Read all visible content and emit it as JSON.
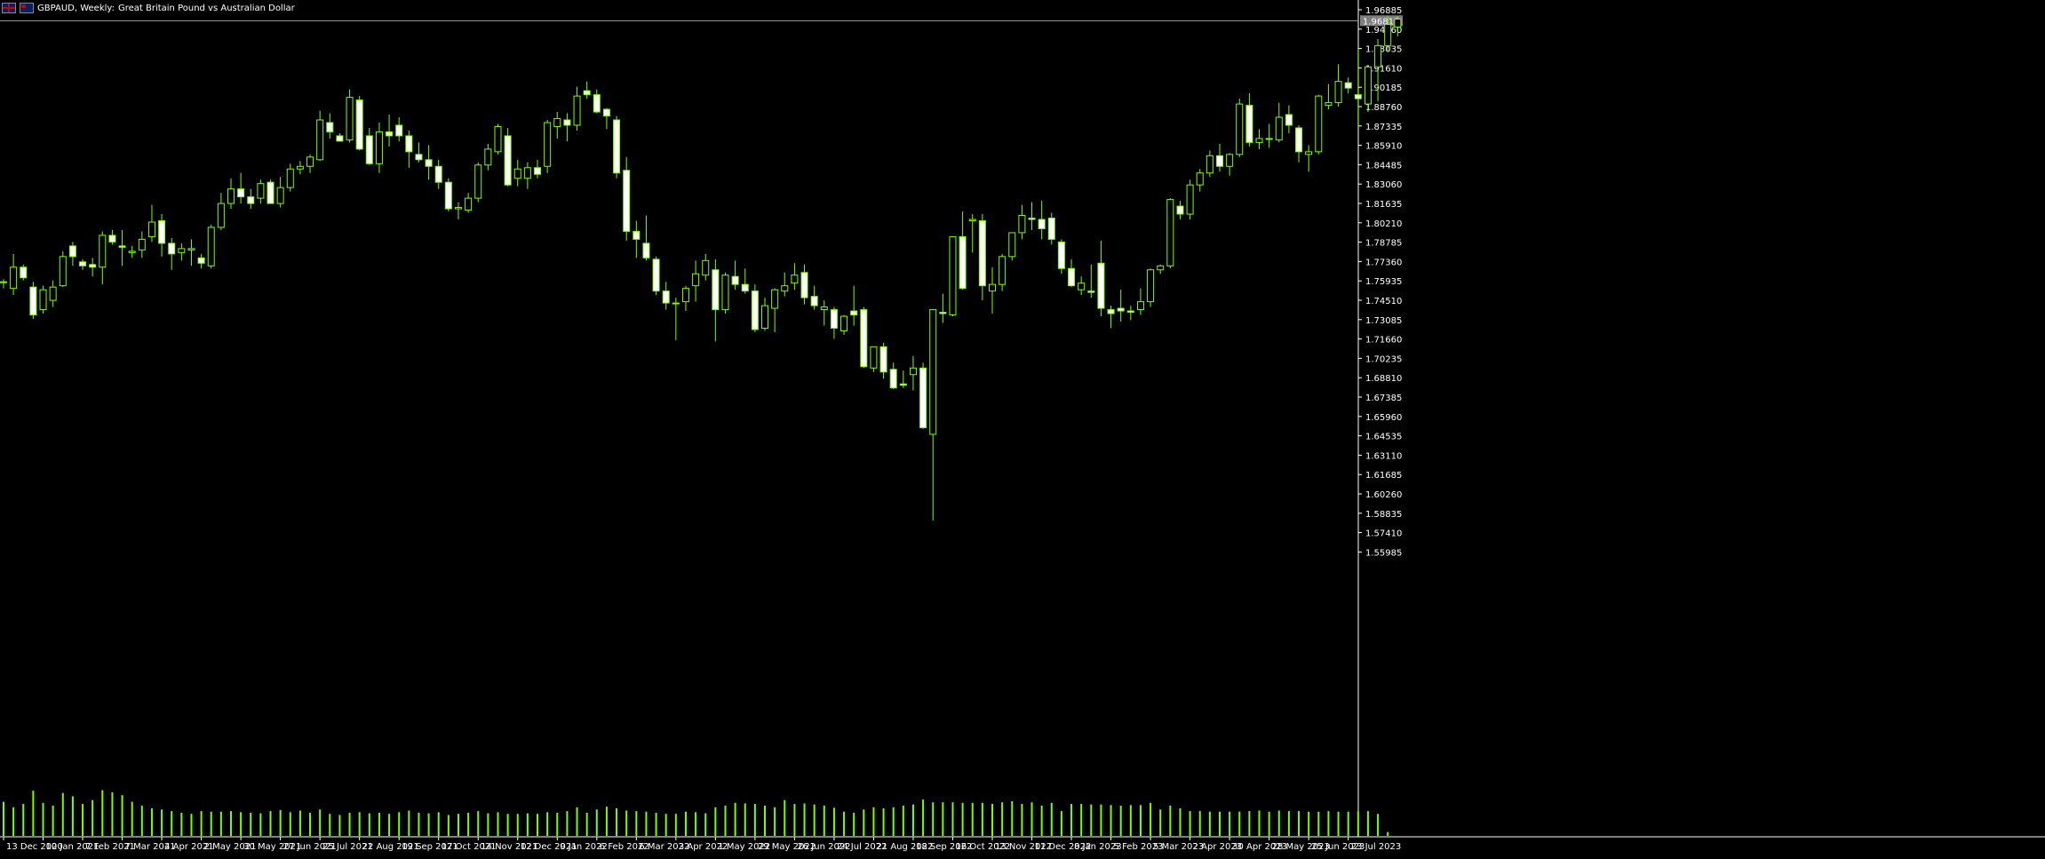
{
  "header": {
    "symbol": "GBPAUD, Weekly:",
    "description": "Great Britain Pound vs Australian Dollar"
  },
  "current_price_label": "1.96812",
  "colors": {
    "background": "#000000",
    "bull": "#7CFC00",
    "bear_fill": "#ffffff",
    "axis_text": "#ffffff",
    "price_line": "#a0a0a0",
    "volume": "#7CFC00"
  },
  "chart_data": {
    "type": "candlestick",
    "title": "GBPAUD, Weekly: Great Britain Pound vs Australian Dollar",
    "timeframe": "Weekly",
    "ylim": [
      1.5485,
      1.969
    ],
    "y_ticks": [
      "1.96885",
      "1.94460",
      "1.93035",
      "1.91610",
      "1.90185",
      "1.88760",
      "1.87335",
      "1.85910",
      "1.84485",
      "1.83060",
      "1.81635",
      "1.80210",
      "1.78785",
      "1.77360",
      "1.75935",
      "1.74510",
      "1.73085",
      "1.71660",
      "1.70235",
      "1.68810",
      "1.67385",
      "1.65960",
      "1.64535",
      "1.63110",
      "1.61685",
      "1.60260",
      "1.58835",
      "1.57410",
      "1.55985"
    ],
    "x_labels": [
      {
        "i": 0,
        "label": "13 Dec 2020"
      },
      {
        "i": 4,
        "label": "10 Jan 2021"
      },
      {
        "i": 8,
        "label": "7 Feb 2021"
      },
      {
        "i": 12,
        "label": "7 Mar 2021"
      },
      {
        "i": 16,
        "label": "4 Apr 2021"
      },
      {
        "i": 20,
        "label": "2 May 2021"
      },
      {
        "i": 24,
        "label": "30 May 2021"
      },
      {
        "i": 28,
        "label": "27 Jun 2021"
      },
      {
        "i": 32,
        "label": "25 Jul 2021"
      },
      {
        "i": 36,
        "label": "22 Aug 2021"
      },
      {
        "i": 40,
        "label": "19 Sep 2021"
      },
      {
        "i": 44,
        "label": "17 Oct 2021"
      },
      {
        "i": 48,
        "label": "14 Nov 2021"
      },
      {
        "i": 52,
        "label": "12 Dec 2021"
      },
      {
        "i": 56,
        "label": "9 Jan 2022"
      },
      {
        "i": 60,
        "label": "6 Feb 2022"
      },
      {
        "i": 64,
        "label": "6 Mar 2022"
      },
      {
        "i": 68,
        "label": "3 Apr 2022"
      },
      {
        "i": 72,
        "label": "1 May 2022"
      },
      {
        "i": 76,
        "label": "29 May 2022"
      },
      {
        "i": 80,
        "label": "26 Jun 2022"
      },
      {
        "i": 84,
        "label": "24 Jul 2022"
      },
      {
        "i": 88,
        "label": "21 Aug 2022"
      },
      {
        "i": 92,
        "label": "18 Sep 2022"
      },
      {
        "i": 96,
        "label": "16 Oct 2022"
      },
      {
        "i": 100,
        "label": "13 Nov 2022"
      },
      {
        "i": 104,
        "label": "11 Dec 2022"
      },
      {
        "i": 108,
        "label": "8 Jan 2023"
      },
      {
        "i": 112,
        "label": "5 Feb 2023"
      },
      {
        "i": 116,
        "label": "5 Mar 2023"
      },
      {
        "i": 120,
        "label": "2 Apr 2023"
      },
      {
        "i": 124,
        "label": "30 Apr 2023"
      },
      {
        "i": 128,
        "label": "28 May 2023"
      },
      {
        "i": 132,
        "label": "25 Jun 2023"
      },
      {
        "i": 136,
        "label": "23 Jul 2023"
      }
    ],
    "ohlc": [
      [
        1.77,
        1.772,
        1.765,
        1.77
      ],
      [
        1.765,
        1.791,
        1.76,
        1.781
      ],
      [
        1.781,
        1.783,
        1.771,
        1.773
      ],
      [
        1.766,
        1.77,
        1.742,
        1.745
      ],
      [
        1.749,
        1.767,
        1.746,
        1.764
      ],
      [
        1.756,
        1.771,
        1.751,
        1.766
      ],
      [
        1.767,
        1.793,
        1.766,
        1.789
      ],
      [
        1.797,
        1.8,
        1.782,
        1.789
      ],
      [
        1.785,
        1.787,
        1.779,
        1.782
      ],
      [
        1.783,
        1.788,
        1.774,
        1.781
      ],
      [
        1.781,
        1.808,
        1.768,
        1.805
      ],
      [
        1.805,
        1.809,
        1.798,
        1.8
      ],
      [
        1.797,
        1.809,
        1.782,
        1.796
      ],
      [
        1.792,
        1.797,
        1.788,
        1.793
      ],
      [
        1.794,
        1.808,
        1.788,
        1.802
      ],
      [
        1.804,
        1.828,
        1.8,
        1.815
      ],
      [
        1.816,
        1.821,
        1.789,
        1.799
      ],
      [
        1.799,
        1.803,
        1.779,
        1.791
      ],
      [
        1.792,
        1.799,
        1.786,
        1.795
      ],
      [
        1.794,
        1.802,
        1.782,
        1.795
      ],
      [
        1.788,
        1.791,
        1.78,
        1.784
      ],
      [
        1.782,
        1.813,
        1.78,
        1.811
      ],
      [
        1.811,
        1.837,
        1.809,
        1.829
      ],
      [
        1.829,
        1.848,
        1.825,
        1.84
      ],
      [
        1.84,
        1.852,
        1.829,
        1.834
      ],
      [
        1.834,
        1.84,
        1.825,
        1.829
      ],
      [
        1.833,
        1.847,
        1.829,
        1.844
      ],
      [
        1.845,
        1.847,
        1.829,
        1.829
      ],
      [
        1.829,
        1.849,
        1.826,
        1.841
      ],
      [
        1.841,
        1.859,
        1.838,
        1.855
      ],
      [
        1.855,
        1.861,
        1.851,
        1.857
      ],
      [
        1.857,
        1.866,
        1.852,
        1.864
      ],
      [
        1.862,
        1.899,
        1.861,
        1.892
      ],
      [
        1.89,
        1.897,
        1.878,
        1.883
      ],
      [
        1.88,
        1.882,
        1.876,
        1.876
      ],
      [
        1.877,
        1.915,
        1.875,
        1.909
      ],
      [
        1.907,
        1.91,
        1.869,
        1.87
      ],
      [
        1.88,
        1.886,
        1.858,
        1.859
      ],
      [
        1.859,
        1.89,
        1.852,
        1.883
      ],
      [
        1.883,
        1.896,
        1.872,
        1.88
      ],
      [
        1.888,
        1.894,
        1.876,
        1.88
      ],
      [
        1.88,
        1.884,
        1.856,
        1.868
      ],
      [
        1.866,
        1.875,
        1.86,
        1.862
      ],
      [
        1.862,
        1.873,
        1.847,
        1.857
      ],
      [
        1.857,
        1.862,
        1.84,
        1.845
      ],
      [
        1.845,
        1.848,
        1.823,
        1.825
      ],
      [
        1.825,
        1.83,
        1.817,
        1.826
      ],
      [
        1.824,
        1.837,
        1.822,
        1.833
      ],
      [
        1.833,
        1.86,
        1.83,
        1.858
      ],
      [
        1.858,
        1.874,
        1.854,
        1.87
      ],
      [
        1.868,
        1.889,
        1.866,
        1.887
      ],
      [
        1.88,
        1.886,
        1.842,
        1.843
      ],
      [
        1.848,
        1.862,
        1.842,
        1.855
      ],
      [
        1.848,
        1.86,
        1.84,
        1.856
      ],
      [
        1.856,
        1.862,
        1.848,
        1.851
      ],
      [
        1.857,
        1.892,
        1.852,
        1.89
      ],
      [
        1.887,
        1.898,
        1.878,
        1.893
      ],
      [
        1.892,
        1.897,
        1.876,
        1.888
      ],
      [
        1.888,
        1.917,
        1.884,
        1.91
      ],
      [
        1.914,
        1.921,
        1.908,
        1.911
      ],
      [
        1.911,
        1.915,
        1.897,
        1.898
      ],
      [
        1.9,
        1.901,
        1.885,
        1.895
      ],
      [
        1.892,
        1.895,
        1.848,
        1.852
      ],
      [
        1.854,
        1.864,
        1.801,
        1.808
      ],
      [
        1.808,
        1.816,
        1.788,
        1.802
      ],
      [
        1.799,
        1.82,
        1.786,
        1.788
      ],
      [
        1.787,
        1.789,
        1.76,
        1.763
      ],
      [
        1.763,
        1.77,
        1.749,
        1.754
      ],
      [
        1.754,
        1.758,
        1.726,
        1.754
      ],
      [
        1.755,
        1.767,
        1.748,
        1.765
      ],
      [
        1.767,
        1.786,
        1.755,
        1.776
      ],
      [
        1.775,
        1.791,
        1.771,
        1.786
      ],
      [
        1.779,
        1.787,
        1.725,
        1.749
      ],
      [
        1.749,
        1.777,
        1.746,
        1.775
      ],
      [
        1.774,
        1.786,
        1.764,
        1.768
      ],
      [
        1.768,
        1.78,
        1.761,
        1.763
      ],
      [
        1.763,
        1.768,
        1.732,
        1.734
      ],
      [
        1.735,
        1.758,
        1.733,
        1.752
      ],
      [
        1.75,
        1.765,
        1.732,
        1.764
      ],
      [
        1.763,
        1.777,
        1.759,
        1.767
      ],
      [
        1.769,
        1.784,
        1.764,
        1.775
      ],
      [
        1.777,
        1.783,
        1.753,
        1.758
      ],
      [
        1.759,
        1.767,
        1.749,
        1.752
      ],
      [
        1.749,
        1.756,
        1.737,
        1.751
      ],
      [
        1.749,
        1.751,
        1.727,
        1.735
      ],
      [
        1.733,
        1.745,
        1.73,
        1.744
      ],
      [
        1.748,
        1.767,
        1.737,
        1.745
      ],
      [
        1.749,
        1.751,
        1.705,
        1.706
      ],
      [
        1.705,
        1.721,
        1.702,
        1.721
      ],
      [
        1.721,
        1.724,
        1.697,
        1.702
      ],
      [
        1.704,
        1.709,
        1.689,
        1.69
      ],
      [
        1.693,
        1.703,
        1.69,
        1.692
      ],
      [
        1.7,
        1.714,
        1.688,
        1.705
      ],
      [
        1.705,
        1.709,
        1.659,
        1.66
      ],
      [
        1.655,
        1.748,
        1.59,
        1.749
      ],
      [
        1.747,
        1.761,
        1.739,
        1.746
      ],
      [
        1.745,
        1.804,
        1.744,
        1.804
      ],
      [
        1.804,
        1.823,
        1.764,
        1.765
      ],
      [
        1.816,
        1.821,
        1.792,
        1.817
      ],
      [
        1.816,
        1.821,
        1.756,
        1.767
      ],
      [
        1.763,
        1.781,
        1.746,
        1.768
      ],
      [
        1.768,
        1.791,
        1.763,
        1.789
      ],
      [
        1.789,
        1.807,
        1.786,
        1.807
      ],
      [
        1.807,
        1.828,
        1.802,
        1.82
      ],
      [
        1.818,
        1.83,
        1.809,
        1.817
      ],
      [
        1.817,
        1.831,
        1.802,
        1.81
      ],
      [
        1.818,
        1.822,
        1.798,
        1.802
      ],
      [
        1.8,
        1.802,
        1.776,
        1.78
      ],
      [
        1.78,
        1.787,
        1.766,
        1.767
      ],
      [
        1.764,
        1.774,
        1.76,
        1.769
      ],
      [
        1.763,
        1.783,
        1.758,
        1.762
      ],
      [
        1.784,
        1.801,
        1.744,
        1.75
      ],
      [
        1.749,
        1.752,
        1.735,
        1.746
      ],
      [
        1.75,
        1.764,
        1.74,
        1.748
      ],
      [
        1.748,
        1.752,
        1.741,
        1.747
      ],
      [
        1.749,
        1.765,
        1.745,
        1.755
      ],
      [
        1.755,
        1.78,
        1.751,
        1.779
      ],
      [
        1.779,
        1.783,
        1.776,
        1.782
      ],
      [
        1.782,
        1.833,
        1.78,
        1.832
      ],
      [
        1.827,
        1.831,
        1.817,
        1.821
      ],
      [
        1.821,
        1.847,
        1.817,
        1.843
      ],
      [
        1.843,
        1.855,
        1.838,
        1.852
      ],
      [
        1.852,
        1.869,
        1.849,
        1.865
      ],
      [
        1.865,
        1.874,
        1.853,
        1.857
      ],
      [
        1.857,
        1.867,
        1.85,
        1.866
      ],
      [
        1.866,
        1.908,
        1.864,
        1.904
      ],
      [
        1.903,
        1.912,
        1.872,
        1.875
      ],
      [
        1.875,
        1.885,
        1.87,
        1.878
      ],
      [
        1.878,
        1.889,
        1.871,
        1.878
      ],
      [
        1.877,
        1.905,
        1.875,
        1.894
      ],
      [
        1.896,
        1.903,
        1.882,
        1.888
      ],
      [
        1.886,
        1.888,
        1.86,
        1.868
      ],
      [
        1.866,
        1.873,
        1.853,
        1.868
      ],
      [
        1.868,
        1.911,
        1.866,
        1.91
      ],
      [
        1.903,
        1.919,
        1.9,
        1.905
      ],
      [
        1.905,
        1.934,
        1.902,
        1.921
      ],
      [
        1.92,
        1.924,
        1.912,
        1.916
      ],
      [
        1.911,
        1.946,
        1.887,
        1.908
      ],
      [
        1.904,
        1.928,
        1.898,
        1.932
      ],
      [
        1.932,
        1.953,
        1.906,
        1.948
      ],
      [
        1.948,
        1.97,
        1.944,
        1.964
      ],
      [
        1.962,
        1.97,
        1.955,
        1.968
      ]
    ],
    "volume": [
      0.62,
      0.52,
      0.58,
      0.82,
      0.6,
      0.55,
      0.78,
      0.72,
      0.58,
      0.65,
      0.83,
      0.79,
      0.74,
      0.62,
      0.55,
      0.5,
      0.48,
      0.45,
      0.42,
      0.4,
      0.45,
      0.44,
      0.44,
      0.45,
      0.43,
      0.42,
      0.41,
      0.45,
      0.47,
      0.43,
      0.46,
      0.42,
      0.48,
      0.4,
      0.38,
      0.42,
      0.43,
      0.41,
      0.42,
      0.4,
      0.43,
      0.46,
      0.42,
      0.41,
      0.43,
      0.38,
      0.4,
      0.42,
      0.45,
      0.41,
      0.43,
      0.4,
      0.4,
      0.41,
      0.4,
      0.43,
      0.42,
      0.45,
      0.52,
      0.42,
      0.48,
      0.53,
      0.5,
      0.46,
      0.45,
      0.44,
      0.42,
      0.4,
      0.4,
      0.44,
      0.43,
      0.41,
      0.52,
      0.55,
      0.6,
      0.59,
      0.58,
      0.55,
      0.52,
      0.65,
      0.58,
      0.59,
      0.57,
      0.55,
      0.51,
      0.44,
      0.42,
      0.48,
      0.52,
      0.5,
      0.52,
      0.55,
      0.57,
      0.66,
      0.61,
      0.61,
      0.61,
      0.6,
      0.6,
      0.6,
      0.58,
      0.61,
      0.63,
      0.58,
      0.61,
      0.55,
      0.6,
      0.45,
      0.58,
      0.58,
      0.57,
      0.57,
      0.56,
      0.55,
      0.56,
      0.56,
      0.6,
      0.48,
      0.55,
      0.5,
      0.45,
      0.45,
      0.44,
      0.44,
      0.44,
      0.44,
      0.45,
      0.46,
      0.44,
      0.46,
      0.45,
      0.45,
      0.44,
      0.44,
      0.45,
      0.44,
      0.44,
      0.45,
      0.45,
      0.4,
      0.07
    ]
  }
}
